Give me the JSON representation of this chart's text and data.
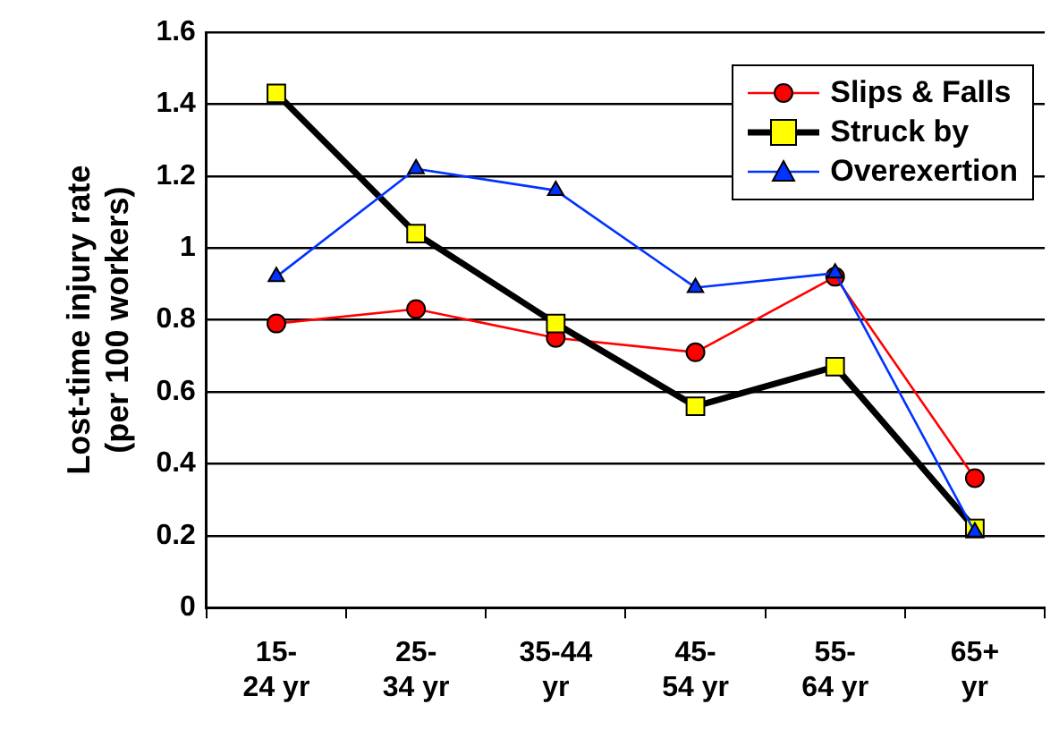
{
  "chart_data": {
    "type": "line",
    "ylabel": "Lost-time injury rate\n(per 100 workers)",
    "categories": [
      "15-\n24 yr",
      "25-\n34 yr",
      "35-44\nyr",
      "45-\n54 yr",
      "55-\n64 yr",
      "65+\nyr"
    ],
    "series": [
      {
        "name": "Slips & Falls",
        "color": "#ff0000",
        "marker": "circle",
        "values": [
          0.79,
          0.83,
          0.75,
          0.71,
          0.92,
          0.36
        ]
      },
      {
        "name": "Struck by",
        "color": "#000000",
        "marker": "square",
        "values": [
          1.43,
          1.04,
          0.79,
          0.56,
          0.67,
          0.22
        ]
      },
      {
        "name": "Overexertion",
        "color": "#0033ff",
        "marker": "triangle",
        "values": [
          0.92,
          1.22,
          1.16,
          0.89,
          0.93,
          0.21
        ]
      }
    ],
    "ylim": [
      0,
      1.6
    ],
    "yticks": [
      0,
      0.2,
      0.4,
      0.6,
      0.8,
      1,
      1.2,
      1.4,
      1.6
    ],
    "grid": "y",
    "legend": "top right"
  }
}
